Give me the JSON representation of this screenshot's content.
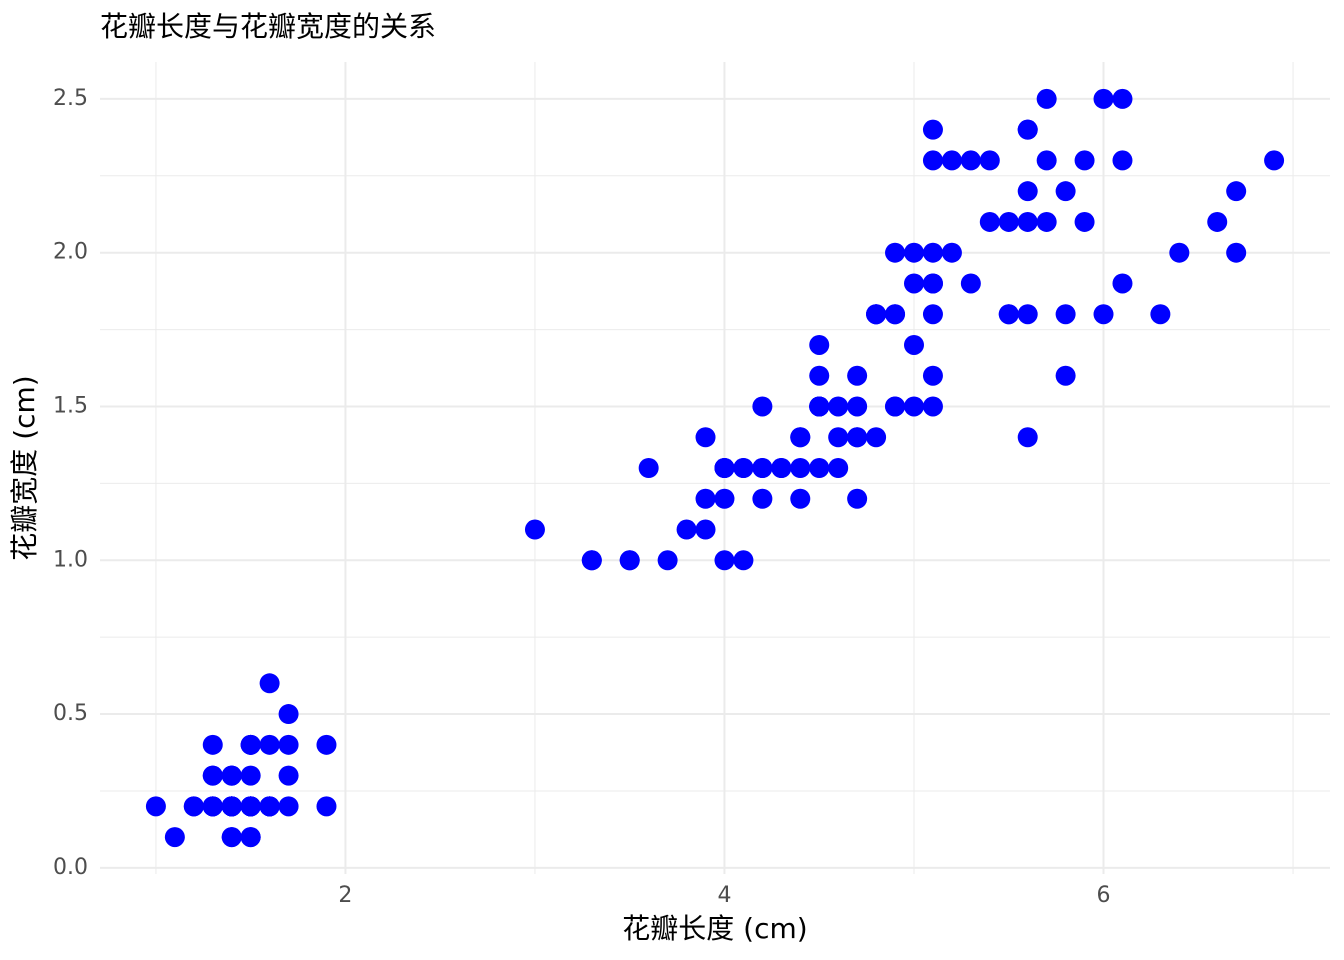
{
  "chart_data": {
    "type": "scatter",
    "title": "花瓣长度与花瓣宽度的关系",
    "x_label": "花瓣长度 (cm)",
    "y_label": "花瓣宽度 (cm)",
    "color": "#0000ff",
    "grid": true,
    "x": [
      1.4,
      1.4,
      1.3,
      1.5,
      1.4,
      1.7,
      1.4,
      1.5,
      1.4,
      1.5,
      1.5,
      1.6,
      1.4,
      1.1,
      1.2,
      1.5,
      1.3,
      1.4,
      1.7,
      1.5,
      1.7,
      1.5,
      1.0,
      1.7,
      1.9,
      1.6,
      1.6,
      1.5,
      1.4,
      1.6,
      1.6,
      1.5,
      1.5,
      1.4,
      1.5,
      1.2,
      1.3,
      1.4,
      1.3,
      1.5,
      1.3,
      1.3,
      1.3,
      1.6,
      1.9,
      1.4,
      1.6,
      1.4,
      1.5,
      1.4,
      4.7,
      4.5,
      4.9,
      4.0,
      4.6,
      4.5,
      4.7,
      3.3,
      4.6,
      3.9,
      3.5,
      4.2,
      4.0,
      4.7,
      3.6,
      4.4,
      4.5,
      4.1,
      4.5,
      3.9,
      4.8,
      4.0,
      4.9,
      4.7,
      4.3,
      4.4,
      4.8,
      5.0,
      4.5,
      3.5,
      3.8,
      3.7,
      3.9,
      5.1,
      4.5,
      4.5,
      4.7,
      4.4,
      4.1,
      4.0,
      4.4,
      4.6,
      4.0,
      3.3,
      4.2,
      4.2,
      4.2,
      4.3,
      3.0,
      4.1,
      6.0,
      5.1,
      5.9,
      5.6,
      5.8,
      6.6,
      4.5,
      6.3,
      5.8,
      6.1,
      5.1,
      5.3,
      5.5,
      5.0,
      5.1,
      5.3,
      5.5,
      6.7,
      6.9,
      5.0,
      5.7,
      4.9,
      6.7,
      4.9,
      5.7,
      6.0,
      4.8,
      4.9,
      5.6,
      5.8,
      6.1,
      6.4,
      5.6,
      5.1,
      5.6,
      6.1,
      5.6,
      5.5,
      4.8,
      5.4,
      5.6,
      5.1,
      5.1,
      5.9,
      5.7,
      5.2,
      5.0,
      5.2,
      5.4,
      5.1
    ],
    "values": [
      0.2,
      0.2,
      0.2,
      0.2,
      0.2,
      0.4,
      0.3,
      0.2,
      0.2,
      0.1,
      0.2,
      0.2,
      0.1,
      0.1,
      0.2,
      0.4,
      0.4,
      0.3,
      0.3,
      0.3,
      0.2,
      0.4,
      0.2,
      0.5,
      0.2,
      0.2,
      0.4,
      0.2,
      0.2,
      0.2,
      0.2,
      0.4,
      0.1,
      0.2,
      0.2,
      0.2,
      0.2,
      0.1,
      0.2,
      0.2,
      0.3,
      0.3,
      0.2,
      0.6,
      0.4,
      0.3,
      0.2,
      0.2,
      0.2,
      0.2,
      1.4,
      1.5,
      1.5,
      1.3,
      1.5,
      1.3,
      1.6,
      1.0,
      1.3,
      1.4,
      1.0,
      1.5,
      1.0,
      1.4,
      1.3,
      1.4,
      1.5,
      1.0,
      1.5,
      1.1,
      1.8,
      1.3,
      1.5,
      1.2,
      1.3,
      1.4,
      1.4,
      1.7,
      1.5,
      1.0,
      1.1,
      1.0,
      1.2,
      1.6,
      1.5,
      1.6,
      1.5,
      1.3,
      1.3,
      1.3,
      1.2,
      1.4,
      1.2,
      1.0,
      1.3,
      1.2,
      1.3,
      1.3,
      1.1,
      1.3,
      2.5,
      1.9,
      2.1,
      1.8,
      2.2,
      2.1,
      1.7,
      1.8,
      1.8,
      2.5,
      2.0,
      1.9,
      2.1,
      2.0,
      2.4,
      2.3,
      1.8,
      2.2,
      2.3,
      1.5,
      2.3,
      2.0,
      2.0,
      1.8,
      2.1,
      1.8,
      1.8,
      1.8,
      2.1,
      1.6,
      1.9,
      2.0,
      2.2,
      1.5,
      1.4,
      2.3,
      2.4,
      1.8,
      1.8,
      2.1,
      2.4,
      2.3,
      1.9,
      2.3,
      2.5,
      2.3,
      1.9,
      2.0,
      2.3,
      1.8
    ],
    "xlim": [
      0.705,
      7.195
    ],
    "ylim": [
      -0.02,
      2.62
    ],
    "xticks": [
      2,
      4,
      6
    ],
    "yticks": [
      {
        "value": 0,
        "label": "0.0"
      },
      0.5,
      {
        "value": 1,
        "label": "1.0"
      },
      1.5,
      {
        "value": 2,
        "label": "2.0"
      },
      2.5
    ],
    "x_minor_grid": [
      1,
      3,
      5,
      7
    ],
    "y_minor_grid": [
      0.25,
      0.75,
      1.25,
      1.75,
      2.25
    ]
  }
}
